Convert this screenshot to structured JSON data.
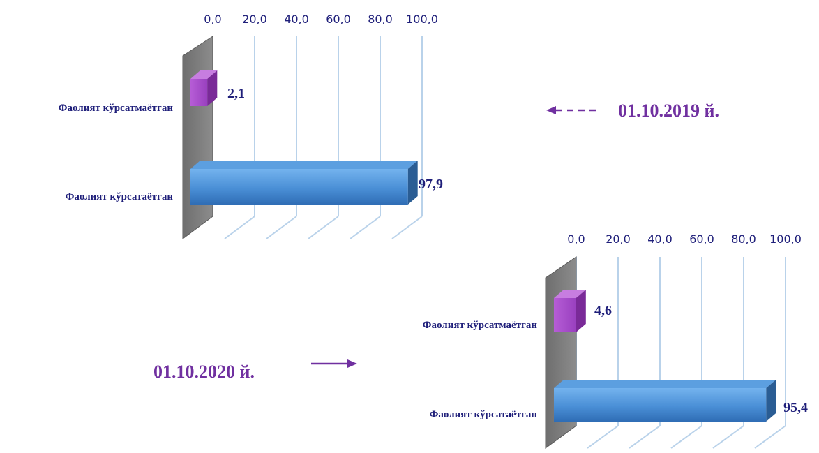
{
  "chart_data": [
    {
      "type": "bar",
      "orientation": "horizontal",
      "three_d": true,
      "categories": [
        "Фаолият кўрсатмаётган",
        "Фаолият кўрсатаётган"
      ],
      "values": [
        2.1,
        97.9
      ],
      "value_labels": [
        "2,1",
        "97,9"
      ],
      "ticks": [
        "0,0",
        "20,0",
        "40,0",
        "60,0",
        "80,0",
        "100,0"
      ],
      "xlim": [
        0,
        100
      ],
      "grid": true,
      "annotation": "01.10.2019 й.",
      "colors": [
        "#a64ac9",
        "#3f86d2"
      ]
    },
    {
      "type": "bar",
      "orientation": "horizontal",
      "three_d": true,
      "categories": [
        "Фаолият кўрсатмаётган",
        "Фаолият кўрсатаётган"
      ],
      "values": [
        4.6,
        95.4
      ],
      "value_labels": [
        "4,6",
        "95,4"
      ],
      "ticks": [
        "0,0",
        "20,0",
        "40,0",
        "60,0",
        "80,0",
        "100,0"
      ],
      "xlim": [
        0,
        100
      ],
      "grid": true,
      "annotation": "01.10.2020 й.",
      "colors": [
        "#a64ac9",
        "#3f86d2"
      ]
    }
  ],
  "colors": {
    "axis_text": "#1f1f7a",
    "annotation": "#7030a0",
    "wall": "#7f7f7f",
    "grid": "#b9d2ea"
  }
}
